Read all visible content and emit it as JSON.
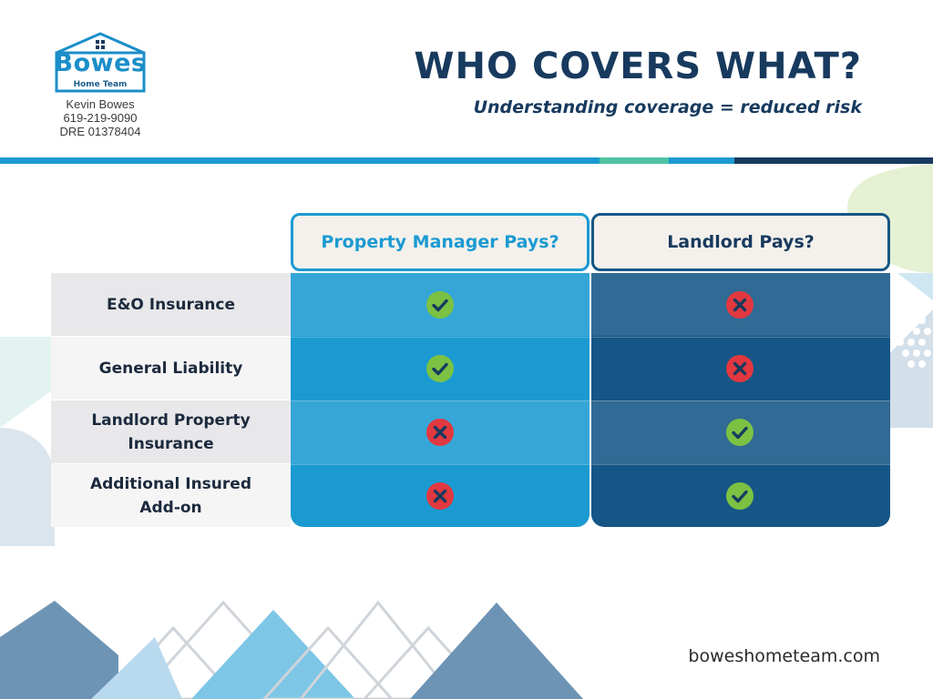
{
  "logo": {
    "wordmark": "Bowes",
    "subtext": "Home Team",
    "icon": "house-outline-icon",
    "color": "#1b8ec9"
  },
  "contact": {
    "name": "Kevin Bowes",
    "phone": "619-219-9090",
    "license": "DRE 01378404"
  },
  "header": {
    "title": "WHO COVERS WHAT?",
    "subtitle": "Understanding coverage = reduced risk"
  },
  "table": {
    "columns": [
      {
        "label": "Property Manager Pays?",
        "color": "#1b9ad2"
      },
      {
        "label": "Landlord Pays?",
        "color": "#155686"
      }
    ],
    "rows": [
      {
        "label": "E&O Insurance",
        "property_manager": "check-icon",
        "landlord": "cross-icon"
      },
      {
        "label": "General Liability",
        "property_manager": "check-icon",
        "landlord": "cross-icon"
      },
      {
        "label": "Landlord Property Insurance",
        "property_manager": "cross-icon",
        "landlord": "check-icon"
      },
      {
        "label": "Additional Insured Add-on",
        "property_manager": "cross-icon",
        "landlord": "check-icon"
      }
    ]
  },
  "colors": {
    "navy": "#173a5e",
    "check_green": "#7cc242",
    "cross_red": "#e2383f"
  },
  "footer": {
    "website": "boweshometeam.com"
  }
}
